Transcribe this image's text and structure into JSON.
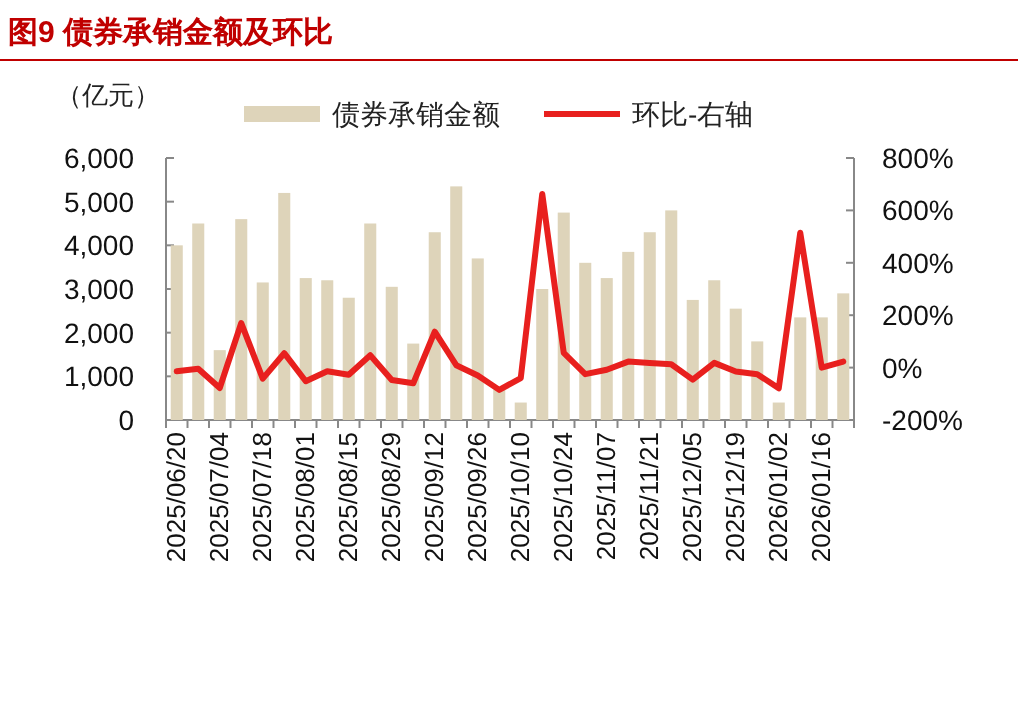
{
  "chart_data": {
    "type": "bar",
    "title": "图9  债券承销金额及环比",
    "ylabel": "（亿元）",
    "categories": [
      "2025/06/20",
      null,
      "2025/07/04",
      null,
      "2025/07/18",
      null,
      "2025/08/01",
      null,
      "2025/08/15",
      null,
      "2025/08/29",
      null,
      "2025/09/12",
      null,
      "2025/09/26",
      null,
      "2025/10/10",
      null,
      "2025/10/24",
      null,
      "2025/11/07",
      null,
      "2025/11/21",
      null,
      "2025/12/05",
      null,
      "2025/12/19",
      null,
      "2026/01/02",
      null,
      "2026/01/16",
      null
    ],
    "series": [
      {
        "name": "债券承销金额",
        "color": "#ded4ba",
        "values": [
          4000,
          4500,
          1600,
          4600,
          3150,
          5200,
          3250,
          3200,
          2800,
          4500,
          3050,
          1750,
          4300,
          5350,
          3700,
          700,
          400,
          3000,
          4750,
          3600,
          3250,
          3850,
          4300,
          4800,
          2750,
          3200,
          2550,
          1800,
          400,
          2350,
          2350,
          2900
        ]
      },
      {
        "name": "环比-右轴",
        "type": "line",
        "axis": "y2",
        "color": "#e8201e",
        "values": [
          -14,
          -4,
          -78,
          170,
          -42,
          55,
          -52,
          -14,
          -27,
          47,
          -47,
          -60,
          137,
          9,
          -30,
          -85,
          -40,
          663,
          56,
          -25,
          -8,
          23,
          18,
          13,
          -46,
          18,
          -15,
          -25,
          -79,
          515,
          0,
          23
        ]
      }
    ],
    "ylim": [
      0,
      6000
    ],
    "yticks": [
      {
        "value": 0,
        "label": "0"
      },
      {
        "value": 1000,
        "label": "1,000"
      },
      {
        "value": 2000,
        "label": "2,000"
      },
      {
        "value": 3000,
        "label": "3,000"
      },
      {
        "value": 4000,
        "label": "4,000"
      },
      {
        "value": 5000,
        "label": "5,000"
      },
      {
        "value": 6000,
        "label": "6,000"
      }
    ],
    "y2lim": [
      -200,
      800
    ],
    "y2ticks": [
      {
        "value": -200,
        "label": "-200%"
      },
      {
        "value": 0,
        "label": "0%"
      },
      {
        "value": 200,
        "label": "200%"
      },
      {
        "value": 400,
        "label": "400%"
      },
      {
        "value": 600,
        "label": "600%"
      },
      {
        "value": 800,
        "label": "800%"
      }
    ],
    "legend": "top",
    "grid": false,
    "marker": "none",
    "line_style": "solid"
  }
}
